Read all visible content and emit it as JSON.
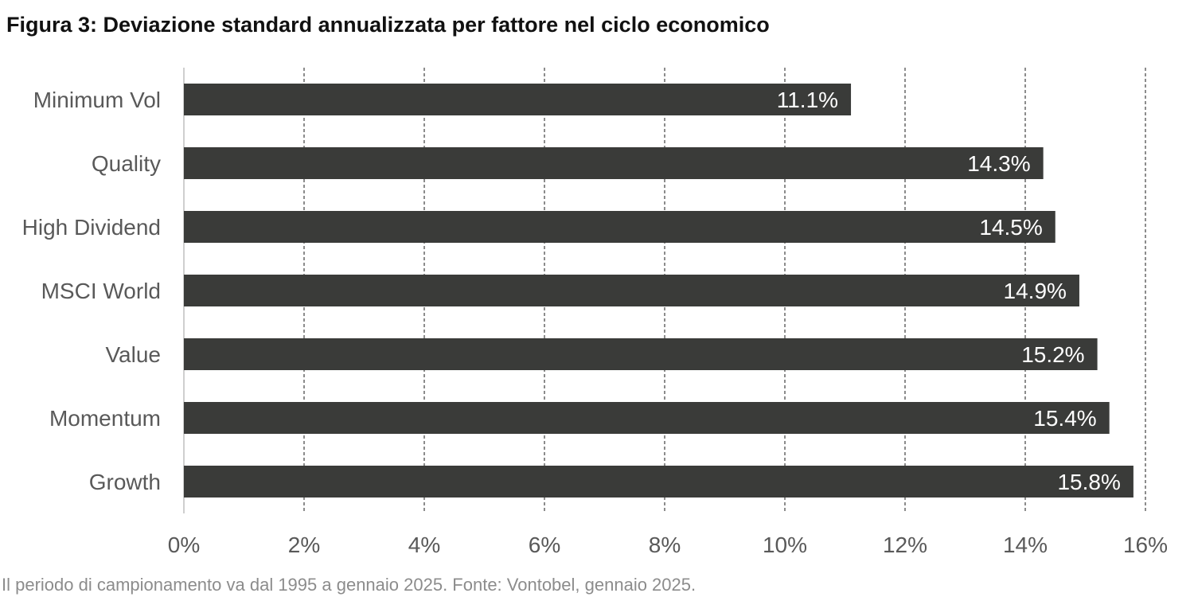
{
  "title": "Figura 3: Deviazione standard annualizzata per fattore nel ciclo economico",
  "footnote": "Il periodo di campionamento va dal 1995 a gennaio 2025. Fonte: Vontobel, gennaio 2025.",
  "colors": {
    "bar": "#3a3b39",
    "bar_label": "#ffffff",
    "axis_text": "#595959",
    "grid": "#404040",
    "axis_line": "#bfbfbf"
  },
  "chart_data": {
    "type": "bar",
    "orientation": "horizontal",
    "categories": [
      "Minimum Vol",
      "Quality",
      "High Dividend",
      "MSCI World",
      "Value",
      "Momentum",
      "Growth"
    ],
    "values": [
      11.1,
      14.3,
      14.5,
      14.9,
      15.2,
      15.4,
      15.8
    ],
    "data_labels": [
      "11.1%",
      "14.3%",
      "14.5%",
      "14.9%",
      "15.2%",
      "15.4%",
      "15.8%"
    ],
    "x_ticks": [
      0,
      2,
      4,
      6,
      8,
      10,
      12,
      14,
      16
    ],
    "x_tick_labels": [
      "0%",
      "2%",
      "4%",
      "6%",
      "8%",
      "10%",
      "12%",
      "14%",
      "16%"
    ],
    "xlim": [
      0,
      16
    ],
    "grid": "vertical-dashed",
    "legend": "none",
    "xlabel": "",
    "ylabel": ""
  }
}
